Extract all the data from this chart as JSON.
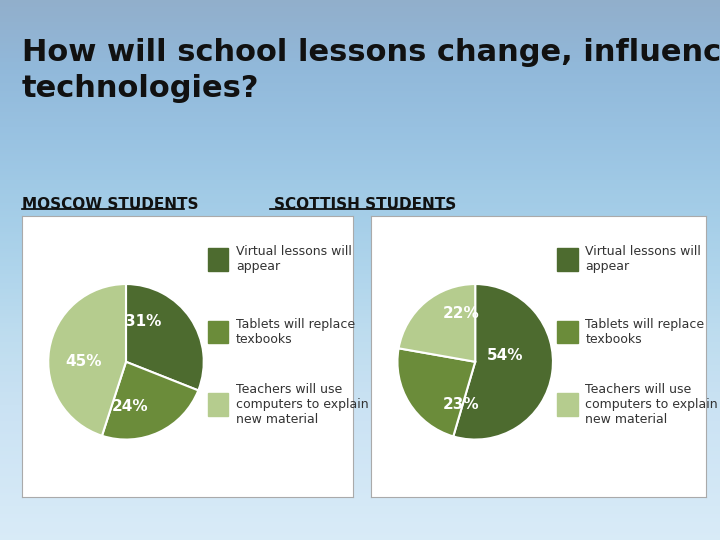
{
  "title": "How will school lessons change, influenced by future\ntechnologies?",
  "title_fontsize": 22,
  "moscow_label": "MOSCOW STUDENTS",
  "scottish_label": "SCOTTISH STUDENTS",
  "legend_labels": [
    "Virtual lessons will\nappear",
    "Tablets will replace\ntexbooks",
    "Teachers will use\ncomputers to explain\nnew material"
  ],
  "moscow_values": [
    31,
    24,
    45
  ],
  "moscow_colors": [
    "#4d6b2f",
    "#6b8c3a",
    "#b5cc8e"
  ],
  "moscow_pct_labels": [
    "31%",
    "24%",
    "45%"
  ],
  "scottish_values": [
    54,
    23,
    22
  ],
  "scottish_colors": [
    "#4d6b2f",
    "#6b8c3a",
    "#b5cc8e"
  ],
  "scottish_pct_labels": [
    "54%",
    "23%",
    "22%"
  ],
  "box_facecolor": "#ffffff",
  "box_edgecolor": "#aaaaaa",
  "pct_fontsize": 11,
  "legend_fontsize": 9
}
